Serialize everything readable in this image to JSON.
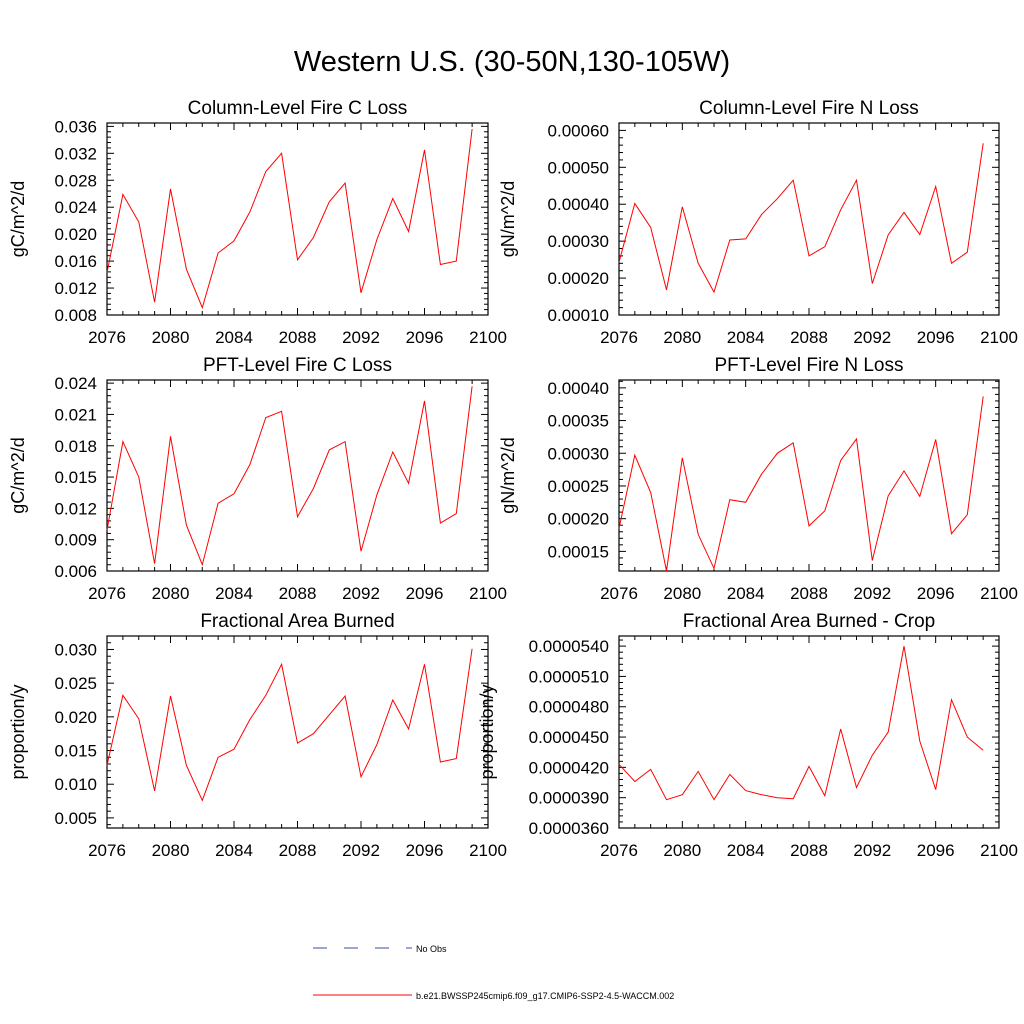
{
  "title": "Western U.S. (30-50N,130-105W)",
  "colors": {
    "series": "#ff0000",
    "obs": "#3a4fa0",
    "axis": "#000000"
  },
  "legend": [
    {
      "label": "No Obs",
      "style": "dashed",
      "color": "#3a4fa0"
    },
    {
      "label": "b.e21.BWSSP245cmip6.f09_g17.CMIP6-SSP2-4.5-WACCM.002",
      "style": "solid",
      "color": "#ff0000"
    }
  ],
  "chart_data": [
    {
      "type": "line",
      "title": "Column-Level Fire C Loss",
      "ylabel": "gC/m^2/d",
      "xlim": [
        2076,
        2100
      ],
      "ylim": [
        0.008,
        0.0365
      ],
      "x_ticks": [
        "2076",
        "2080",
        "2084",
        "2088",
        "2092",
        "2096",
        "2100"
      ],
      "y_ticks": [
        0.008,
        0.012,
        0.016,
        0.02,
        0.024,
        0.028,
        0.032,
        0.036
      ],
      "y_tick_labels": [
        "0.008",
        "0.012",
        "0.016",
        "0.020",
        "0.024",
        "0.028",
        "0.032",
        "0.036"
      ],
      "x": [
        2076,
        2077,
        2078,
        2079,
        2080,
        2081,
        2082,
        2083,
        2084,
        2085,
        2086,
        2087,
        2088,
        2089,
        2090,
        2091,
        2092,
        2093,
        2094,
        2095,
        2096,
        2097,
        2098,
        2099
      ],
      "y": [
        0.0143,
        0.0259,
        0.0218,
        0.0099,
        0.0267,
        0.0148,
        0.0091,
        0.0172,
        0.019,
        0.0233,
        0.0293,
        0.032,
        0.0162,
        0.0195,
        0.0248,
        0.0276,
        0.0113,
        0.0192,
        0.0253,
        0.0204,
        0.0325,
        0.0155,
        0.016,
        0.0356
      ]
    },
    {
      "type": "line",
      "title": "Column-Level Fire N Loss",
      "ylabel": "gN/m^2/d",
      "xlim": [
        2076,
        2100
      ],
      "ylim": [
        0.0001,
        0.00062
      ],
      "x_ticks": [
        "2076",
        "2080",
        "2084",
        "2088",
        "2092",
        "2096",
        "2100"
      ],
      "y_ticks": [
        0.0001,
        0.0002,
        0.0003,
        0.0004,
        0.0005,
        0.0006
      ],
      "y_tick_labels": [
        "0.00010",
        "0.00020",
        "0.00030",
        "0.00040",
        "0.00050",
        "0.00060"
      ],
      "x": [
        2076,
        2077,
        2078,
        2079,
        2080,
        2081,
        2082,
        2083,
        2084,
        2085,
        2086,
        2087,
        2088,
        2089,
        2090,
        2091,
        2092,
        2093,
        2094,
        2095,
        2096,
        2097,
        2098,
        2099
      ],
      "y": [
        0.000243,
        0.000402,
        0.000337,
        0.000168,
        0.000393,
        0.00024,
        0.000162,
        0.000303,
        0.000306,
        0.000372,
        0.000415,
        0.000465,
        0.00026,
        0.000285,
        0.000385,
        0.000465,
        0.000185,
        0.000317,
        0.000378,
        0.000318,
        0.000448,
        0.00024,
        0.00027,
        0.000565
      ]
    },
    {
      "type": "line",
      "title": "PFT-Level Fire C Loss",
      "ylabel": "gC/m^2/d",
      "xlim": [
        2076,
        2100
      ],
      "ylim": [
        0.006,
        0.0243
      ],
      "x_ticks": [
        "2076",
        "2080",
        "2084",
        "2088",
        "2092",
        "2096",
        "2100"
      ],
      "y_ticks": [
        0.006,
        0.009,
        0.012,
        0.015,
        0.018,
        0.021,
        0.024
      ],
      "y_tick_labels": [
        "0.006",
        "0.009",
        "0.012",
        "0.015",
        "0.018",
        "0.021",
        "0.024"
      ],
      "x": [
        2076,
        2077,
        2078,
        2079,
        2080,
        2081,
        2082,
        2083,
        2084,
        2085,
        2086,
        2087,
        2088,
        2089,
        2090,
        2091,
        2092,
        2093,
        2094,
        2095,
        2096,
        2097,
        2098,
        2099
      ],
      "y": [
        0.0099,
        0.0184,
        0.015,
        0.0067,
        0.0189,
        0.0104,
        0.0066,
        0.0125,
        0.0134,
        0.0162,
        0.0207,
        0.0213,
        0.0112,
        0.0139,
        0.0176,
        0.0184,
        0.0079,
        0.0133,
        0.0174,
        0.0144,
        0.0223,
        0.0106,
        0.0115,
        0.0237
      ]
    },
    {
      "type": "line",
      "title": "PFT-Level Fire N Loss",
      "ylabel": "gN/m^2/d",
      "xlim": [
        2076,
        2100
      ],
      "ylim": [
        0.00012,
        0.000412
      ],
      "x_ticks": [
        "2076",
        "2080",
        "2084",
        "2088",
        "2092",
        "2096",
        "2100"
      ],
      "y_ticks": [
        0.00015,
        0.0002,
        0.00025,
        0.0003,
        0.00035,
        0.0004
      ],
      "y_tick_labels": [
        "0.00015",
        "0.00020",
        "0.00025",
        "0.00030",
        "0.00035",
        "0.00040"
      ],
      "x": [
        2076,
        2077,
        2078,
        2079,
        2080,
        2081,
        2082,
        2083,
        2084,
        2085,
        2086,
        2087,
        2088,
        2089,
        2090,
        2091,
        2092,
        2093,
        2094,
        2095,
        2096,
        2097,
        2098,
        2099
      ],
      "y": [
        0.000185,
        0.000297,
        0.00024,
        0.00012,
        0.000293,
        0.000176,
        0.000124,
        0.000229,
        0.000225,
        0.000268,
        0.0003,
        0.000316,
        0.000189,
        0.000212,
        0.000289,
        0.000322,
        0.000136,
        0.000235,
        0.000273,
        0.000234,
        0.000321,
        0.000177,
        0.000206,
        0.000387
      ]
    },
    {
      "type": "line",
      "title": "Fractional Area Burned",
      "ylabel": "proportion/y",
      "xlim": [
        2076,
        2100
      ],
      "ylim": [
        0.0035,
        0.032
      ],
      "x_ticks": [
        "2076",
        "2080",
        "2084",
        "2088",
        "2092",
        "2096",
        "2100"
      ],
      "y_ticks": [
        0.005,
        0.01,
        0.015,
        0.02,
        0.025,
        0.03
      ],
      "y_tick_labels": [
        "0.005",
        "0.010",
        "0.015",
        "0.020",
        "0.025",
        "0.030"
      ],
      "x": [
        2076,
        2077,
        2078,
        2079,
        2080,
        2081,
        2082,
        2083,
        2084,
        2085,
        2086,
        2087,
        2088,
        2089,
        2090,
        2091,
        2092,
        2093,
        2094,
        2095,
        2096,
        2097,
        2098,
        2099
      ],
      "y": [
        0.0128,
        0.0232,
        0.0197,
        0.009,
        0.0231,
        0.0128,
        0.0076,
        0.014,
        0.0152,
        0.0196,
        0.0232,
        0.0278,
        0.0161,
        0.0175,
        0.0203,
        0.0231,
        0.0111,
        0.0159,
        0.0225,
        0.0182,
        0.0278,
        0.0133,
        0.0138,
        0.0301
      ]
    },
    {
      "type": "line",
      "title": "Fractional Area Burned - Crop",
      "ylabel": "proportion/y",
      "xlim": [
        2076,
        2100
      ],
      "ylim": [
        3.6e-05,
        5.5e-05
      ],
      "x_ticks": [
        "2076",
        "2080",
        "2084",
        "2088",
        "2092",
        "2096",
        "2100"
      ],
      "y_ticks": [
        3.6e-05,
        3.9e-05,
        4.2e-05,
        4.5e-05,
        4.8e-05,
        5.1e-05,
        5.4e-05
      ],
      "y_tick_labels": [
        "0.0000360",
        "0.0000390",
        "0.0000420",
        "0.0000450",
        "0.0000480",
        "0.0000510",
        "0.0000540"
      ],
      "x": [
        2076,
        2077,
        2078,
        2079,
        2080,
        2081,
        2082,
        2083,
        2084,
        2085,
        2086,
        2087,
        2088,
        2089,
        2090,
        2091,
        2092,
        2093,
        2094,
        2095,
        2096,
        2097,
        2098,
        2099
      ],
      "y": [
        4.23e-05,
        4.06e-05,
        4.18e-05,
        3.88e-05,
        3.93e-05,
        4.16e-05,
        3.88e-05,
        4.13e-05,
        3.97e-05,
        3.93e-05,
        3.9e-05,
        3.89e-05,
        4.21e-05,
        3.92e-05,
        4.58e-05,
        4e-05,
        4.32e-05,
        4.55e-05,
        5.4e-05,
        4.46e-05,
        3.98e-05,
        4.87e-05,
        4.5e-05,
        4.37e-05
      ]
    }
  ]
}
